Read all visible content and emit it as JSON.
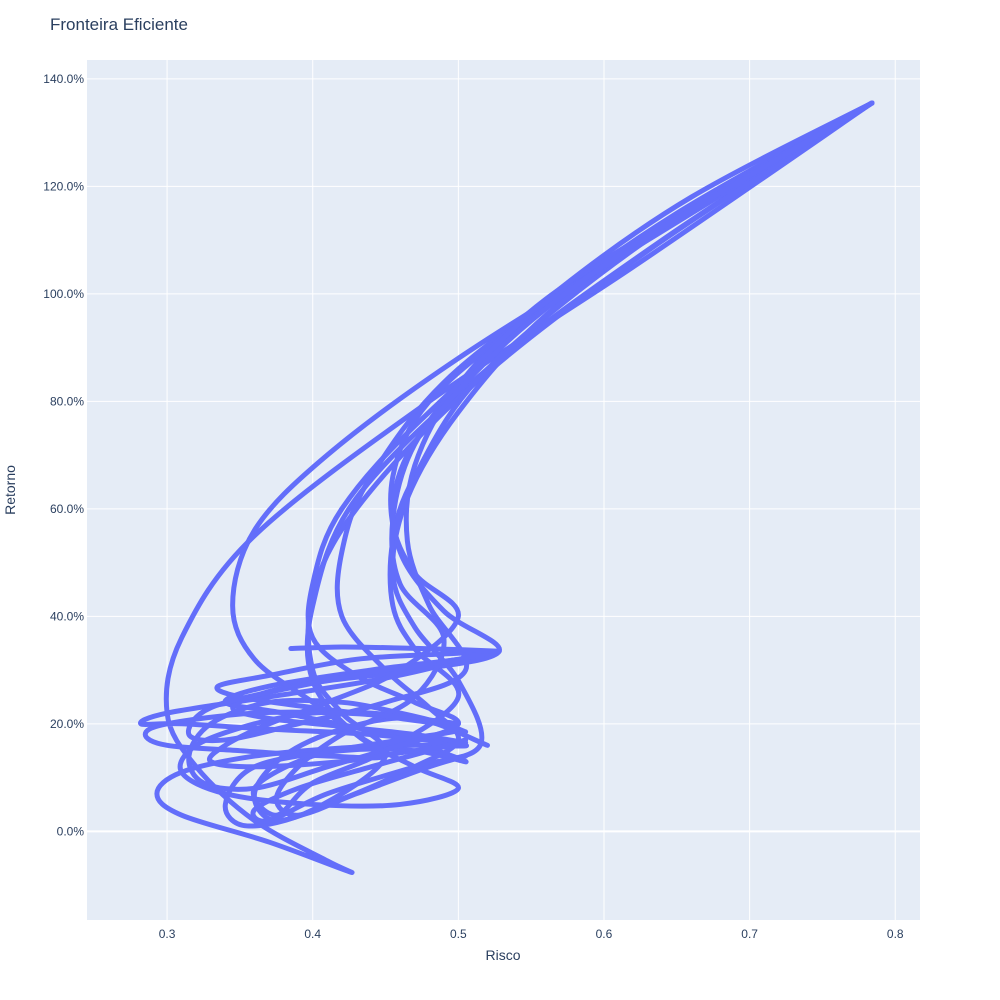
{
  "chart_data": {
    "type": "line",
    "title": "Fronteira Eficiente",
    "xlabel": "Risco",
    "ylabel": "Retorno",
    "xlim": [
      0.245,
      0.817
    ],
    "ylim": [
      -0.165,
      1.435
    ],
    "x_ticks": [
      0.3,
      0.4,
      0.5,
      0.6,
      0.7,
      0.8
    ],
    "x_tick_labels": [
      "0.3",
      "0.4",
      "0.5",
      "0.6",
      "0.7",
      "0.8"
    ],
    "y_ticks": [
      0.0,
      0.2,
      0.4,
      0.6,
      0.8,
      1.0,
      1.2,
      1.4
    ],
    "y_tick_labels": [
      "0.0%",
      "20.0%",
      "40.0%",
      "60.0%",
      "80.0%",
      "100.0%",
      "120.0%",
      "140.0%"
    ],
    "grid": true,
    "legend": "none",
    "line_color": "#636efa",
    "background_color": "#e5ecf6",
    "series": [
      {
        "x": [
          0.784,
          0.62,
          0.48,
          0.36,
          0.31,
          0.3,
          0.32,
          0.36,
          0.41,
          0.425,
          0.37,
          0.31,
          0.293,
          0.31,
          0.36,
          0.42,
          0.47,
          0.505,
          0.44,
          0.37,
          0.31,
          0.282,
          0.3,
          0.37,
          0.44,
          0.49,
          0.515
        ],
        "y": [
          1.355,
          1.05,
          0.8,
          0.55,
          0.36,
          0.22,
          0.12,
          0.02,
          -0.055,
          -0.075,
          -0.02,
          0.03,
          0.07,
          0.11,
          0.14,
          0.155,
          0.16,
          0.16,
          0.18,
          0.19,
          0.2,
          0.2,
          0.22,
          0.25,
          0.28,
          0.31,
          0.335
        ]
      },
      {
        "x": [
          0.784,
          0.64,
          0.52,
          0.43,
          0.4,
          0.4,
          0.43,
          0.47,
          0.5,
          0.46,
          0.4,
          0.34,
          0.31,
          0.32,
          0.36,
          0.4,
          0.44,
          0.47,
          0.5
        ],
        "y": [
          1.355,
          1.1,
          0.86,
          0.62,
          0.42,
          0.28,
          0.18,
          0.12,
          0.08,
          0.05,
          0.05,
          0.07,
          0.11,
          0.16,
          0.2,
          0.22,
          0.22,
          0.21,
          0.2
        ]
      },
      {
        "x": [
          0.784,
          0.63,
          0.51,
          0.43,
          0.4,
          0.4,
          0.42,
          0.45,
          0.4,
          0.355,
          0.34,
          0.36,
          0.42,
          0.47,
          0.505,
          0.45,
          0.38,
          0.34,
          0.37,
          0.44,
          0.5,
          0.528
        ],
        "y": [
          1.355,
          1.08,
          0.83,
          0.6,
          0.44,
          0.3,
          0.22,
          0.14,
          0.04,
          0.01,
          0.05,
          0.12,
          0.15,
          0.15,
          0.13,
          0.18,
          0.22,
          0.24,
          0.27,
          0.3,
          0.32,
          0.335
        ]
      },
      {
        "x": [
          0.784,
          0.62,
          0.5,
          0.44,
          0.42,
          0.42,
          0.45,
          0.48,
          0.5,
          0.47,
          0.42,
          0.375,
          0.36,
          0.38,
          0.42,
          0.47,
          0.52
        ],
        "y": [
          1.355,
          1.09,
          0.86,
          0.66,
          0.52,
          0.4,
          0.3,
          0.23,
          0.17,
          0.12,
          0.06,
          0.02,
          0.07,
          0.14,
          0.19,
          0.21,
          0.16
        ]
      },
      {
        "x": [
          0.784,
          0.64,
          0.52,
          0.47,
          0.455,
          0.455,
          0.47,
          0.5,
          0.45,
          0.4,
          0.375,
          0.36,
          0.4,
          0.46,
          0.5,
          0.46,
          0.4,
          0.35,
          0.335,
          0.37,
          0.43,
          0.49,
          0.528
        ],
        "y": [
          1.355,
          1.12,
          0.86,
          0.66,
          0.54,
          0.42,
          0.34,
          0.25,
          0.15,
          0.09,
          0.03,
          0.08,
          0.14,
          0.17,
          0.19,
          0.21,
          0.23,
          0.25,
          0.27,
          0.29,
          0.32,
          0.33,
          0.335
        ]
      },
      {
        "x": [
          0.784,
          0.6,
          0.48,
          0.42,
          0.4,
          0.4,
          0.43,
          0.47,
          0.5,
          0.46,
          0.41,
          0.36,
          0.325,
          0.315,
          0.33,
          0.37,
          0.42,
          0.46,
          0.49,
          0.505
        ],
        "y": [
          1.355,
          1.06,
          0.78,
          0.6,
          0.46,
          0.36,
          0.29,
          0.24,
          0.2,
          0.16,
          0.12,
          0.08,
          0.09,
          0.14,
          0.2,
          0.24,
          0.24,
          0.22,
          0.2,
          0.185
        ]
      },
      {
        "x": [
          0.784,
          0.65,
          0.55,
          0.48,
          0.455,
          0.46,
          0.49,
          0.528,
          0.47,
          0.41,
          0.37,
          0.345,
          0.37,
          0.42,
          0.47,
          0.505
        ],
        "y": [
          1.355,
          1.15,
          0.96,
          0.8,
          0.66,
          0.52,
          0.41,
          0.335,
          0.3,
          0.28,
          0.26,
          0.23,
          0.21,
          0.195,
          0.18,
          0.165
        ]
      },
      {
        "x": [
          0.784,
          0.65,
          0.56,
          0.5,
          0.465,
          0.455,
          0.47,
          0.5,
          0.515,
          0.47,
          0.41,
          0.37,
          0.36,
          0.39,
          0.44,
          0.48,
          0.505
        ],
        "y": [
          1.355,
          1.14,
          0.96,
          0.78,
          0.62,
          0.48,
          0.38,
          0.28,
          0.16,
          0.12,
          0.07,
          0.02,
          0.04,
          0.08,
          0.12,
          0.15,
          0.17
        ]
      },
      {
        "x": [
          0.784,
          0.66,
          0.56,
          0.5,
          0.47,
          0.465,
          0.48,
          0.505,
          0.45,
          0.39,
          0.34,
          0.315,
          0.33,
          0.39,
          0.45,
          0.5,
          0.528
        ],
        "y": [
          1.355,
          1.16,
          0.99,
          0.83,
          0.68,
          0.54,
          0.42,
          0.3,
          0.24,
          0.2,
          0.17,
          0.18,
          0.23,
          0.27,
          0.3,
          0.32,
          0.335
        ]
      },
      {
        "x": [
          0.784,
          0.66,
          0.57,
          0.51,
          0.47,
          0.455,
          0.46,
          0.49,
          0.47,
          0.42,
          0.39,
          0.375,
          0.39,
          0.43,
          0.48,
          0.505
        ],
        "y": [
          1.355,
          1.18,
          1.01,
          0.86,
          0.72,
          0.58,
          0.46,
          0.36,
          0.25,
          0.18,
          0.12,
          0.06,
          0.03,
          0.07,
          0.12,
          0.14
        ]
      },
      {
        "x": [
          0.784,
          0.63,
          0.5,
          0.41,
          0.36,
          0.345,
          0.36,
          0.4,
          0.43,
          0.45,
          0.41,
          0.35,
          0.3,
          0.285,
          0.3,
          0.36,
          0.42,
          0.47,
          0.5
        ],
        "y": [
          1.355,
          1.1,
          0.88,
          0.7,
          0.56,
          0.42,
          0.32,
          0.24,
          0.18,
          0.14,
          0.14,
          0.15,
          0.16,
          0.18,
          0.2,
          0.22,
          0.22,
          0.21,
          0.2
        ]
      },
      {
        "x": [
          0.784,
          0.7,
          0.62,
          0.55,
          0.5,
          0.465,
          0.455,
          0.47,
          0.5,
          0.46,
          0.41,
          0.37,
          0.34,
          0.33,
          0.36,
          0.42,
          0.47,
          0.5
        ],
        "y": [
          1.355,
          1.22,
          1.09,
          0.95,
          0.82,
          0.7,
          0.58,
          0.48,
          0.4,
          0.3,
          0.24,
          0.2,
          0.16,
          0.13,
          0.12,
          0.13,
          0.15,
          0.16
        ]
      },
      {
        "x": [
          0.385,
          0.42,
          0.46,
          0.5,
          0.528
        ],
        "y": [
          0.34,
          0.343,
          0.341,
          0.338,
          0.335
        ]
      }
    ]
  }
}
